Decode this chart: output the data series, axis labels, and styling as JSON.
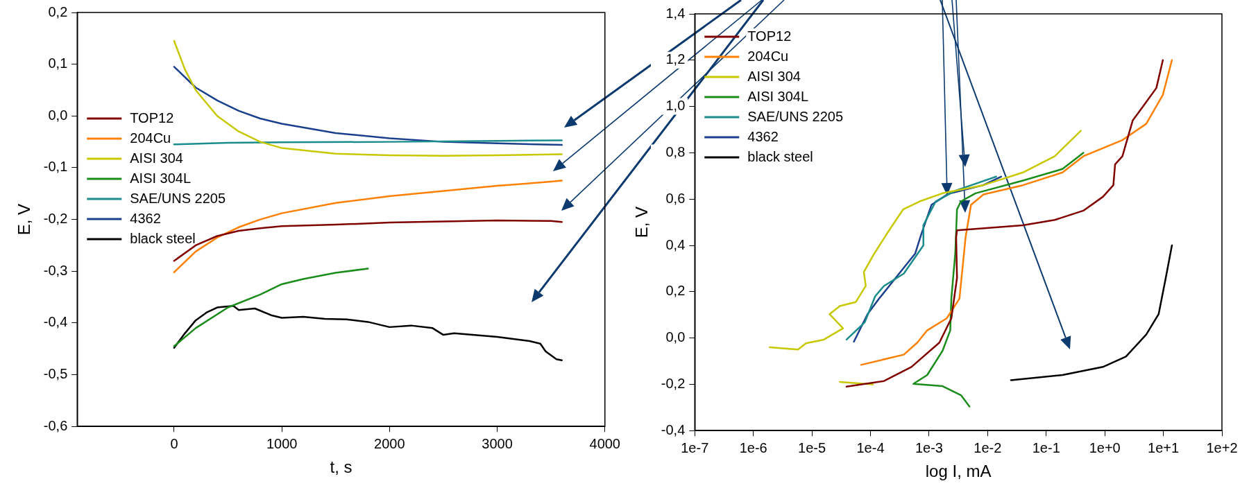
{
  "chart_data": [
    {
      "type": "line",
      "xlabel": "t, s",
      "ylabel": "E, V",
      "legend": "left",
      "grid": false,
      "xlim": [
        -900,
        4000
      ],
      "xticks": [
        0,
        1000,
        2000,
        3000,
        4000
      ],
      "ylim": [
        -0.6,
        0.2
      ],
      "yticks": [
        {
          "value": -0.6,
          "label": "-0,6"
        },
        {
          "value": -0.5,
          "label": "-0,5"
        },
        {
          "value": -0.4,
          "label": "-0,4"
        },
        {
          "value": -0.3,
          "label": "-0,3"
        },
        {
          "value": -0.2,
          "label": "-0,2"
        },
        {
          "value": -0.1,
          "label": "-0,1"
        },
        {
          "value": 0,
          "label": "0,0"
        },
        {
          "value": 0.1,
          "label": "0,1"
        },
        {
          "value": 0.2,
          "label": "0,2"
        }
      ],
      "series": [
        {
          "name": "TOP12",
          "color": "#800000",
          "x": [
            0,
            200,
            400,
            600,
            800,
            1000,
            1500,
            2000,
            2500,
            3000,
            3500,
            3600
          ],
          "values": [
            -0.28,
            -0.25,
            -0.232,
            -0.222,
            -0.217,
            -0.213,
            -0.21,
            -0.206,
            -0.204,
            -0.202,
            -0.203,
            -0.205
          ]
        },
        {
          "name": "204Cu",
          "color": "#ff8000",
          "x": [
            0,
            200,
            400,
            600,
            800,
            1000,
            1500,
            2000,
            2500,
            3000,
            3500,
            3600
          ],
          "values": [
            -0.302,
            -0.262,
            -0.235,
            -0.215,
            -0.2,
            -0.188,
            -0.168,
            -0.155,
            -0.145,
            -0.135,
            -0.127,
            -0.125
          ]
        },
        {
          "name": "AISI 304",
          "color": "#c8c800",
          "x": [
            0,
            100,
            200,
            400,
            600,
            800,
            1000,
            1500,
            2000,
            2500,
            3000,
            3600
          ],
          "values": [
            0.145,
            0.09,
            0.05,
            0.0,
            -0.03,
            -0.05,
            -0.062,
            -0.073,
            -0.076,
            -0.077,
            -0.076,
            -0.074
          ]
        },
        {
          "name": "AISI 304L",
          "color": "#1a8c1a",
          "x": [
            0,
            200,
            500,
            800,
            1000,
            1200,
            1500,
            1800
          ],
          "values": [
            -0.445,
            -0.41,
            -0.37,
            -0.345,
            -0.325,
            -0.315,
            -0.303,
            -0.295
          ]
        },
        {
          "name": "SAE/UNS 2205",
          "color": "#1a8c8c",
          "x": [
            0,
            500,
            1000,
            2000,
            3000,
            3600
          ],
          "values": [
            -0.055,
            -0.052,
            -0.051,
            -0.05,
            -0.048,
            -0.047
          ]
        },
        {
          "name": "4362",
          "color": "#1a3f8c",
          "x": [
            0,
            200,
            400,
            600,
            800,
            1000,
            1500,
            2000,
            2500,
            3000,
            3600
          ],
          "values": [
            0.095,
            0.055,
            0.03,
            0.01,
            -0.005,
            -0.015,
            -0.033,
            -0.043,
            -0.05,
            -0.053,
            -0.056
          ]
        },
        {
          "name": "black steel",
          "color": "#000000",
          "x": [
            0,
            100,
            200,
            300,
            400,
            550,
            600,
            750,
            900,
            1000,
            1200,
            1400,
            1600,
            1800,
            2000,
            2200,
            2400,
            2500,
            2600,
            3000,
            3300,
            3400,
            3450,
            3550,
            3600
          ],
          "values": [
            -0.448,
            -0.42,
            -0.395,
            -0.38,
            -0.37,
            -0.367,
            -0.375,
            -0.372,
            -0.385,
            -0.39,
            -0.388,
            -0.392,
            -0.393,
            -0.398,
            -0.408,
            -0.405,
            -0.41,
            -0.423,
            -0.42,
            -0.427,
            -0.435,
            -0.44,
            -0.455,
            -0.47,
            -0.472
          ]
        }
      ]
    },
    {
      "type": "line",
      "xlabel": "log I, mA",
      "ylabel": "E, V",
      "legend": "top left",
      "grid": false,
      "log": "x",
      "xlim": [
        1e-07,
        100
      ],
      "xticks": [
        {
          "value": 1e-07,
          "label": "1e-7"
        },
        {
          "value": 1e-06,
          "label": "1e-6"
        },
        {
          "value": 1e-05,
          "label": "1e-5"
        },
        {
          "value": 0.0001,
          "label": "1e-4"
        },
        {
          "value": 0.001,
          "label": "1e-3"
        },
        {
          "value": 0.01,
          "label": "1e-2"
        },
        {
          "value": 0.1,
          "label": "1e-1"
        },
        {
          "value": 1,
          "label": "1e+0"
        },
        {
          "value": 10,
          "label": "1e+1"
        },
        {
          "value": 100,
          "label": "1e+2"
        }
      ],
      "ylim": [
        -0.4,
        1.4
      ],
      "yticks": [
        {
          "value": -0.4,
          "label": "-0,4"
        },
        {
          "value": -0.2,
          "label": "-0,2"
        },
        {
          "value": 0,
          "label": "0,0"
        },
        {
          "value": 0.2,
          "label": "0,2"
        },
        {
          "value": 0.4,
          "label": "0,4"
        },
        {
          "value": 0.6,
          "label": "0,6"
        },
        {
          "value": 0.8,
          "label": "0,8"
        },
        {
          "value": 1.0,
          "label": "1,0"
        },
        {
          "value": 1.2,
          "label": "1,2"
        },
        {
          "value": 1.4,
          "label": "1,4"
        }
      ],
      "series": [
        {
          "name": "TOP12",
          "color": "#800000",
          "x": [
            3.9e-05,
            0.00017,
            0.0005,
            0.0015,
            0.0024,
            0.003,
            0.0029,
            0.003,
            0.04,
            0.14,
            0.43,
            0.93,
            1.4,
            1.5,
            2,
            3,
            4.5,
            7.6,
            9.8
          ],
          "values": [
            -0.21,
            -0.186,
            -0.125,
            -0.02,
            0.085,
            0.26,
            0.435,
            0.465,
            0.487,
            0.51,
            0.55,
            0.61,
            0.66,
            0.75,
            0.785,
            0.94,
            1.0,
            1.08,
            1.2
          ]
        },
        {
          "name": "204Cu",
          "color": "#ff8000",
          "x": [
            6.9e-05,
            0.00037,
            0.00063,
            0.00093,
            0.002,
            0.0033,
            0.0042,
            0.0052,
            0.0085,
            0.04,
            0.19,
            0.43,
            2,
            5.1,
            9.8,
            14
          ],
          "values": [
            -0.116,
            -0.072,
            -0.02,
            0.033,
            0.085,
            0.17,
            0.435,
            0.575,
            0.62,
            0.66,
            0.715,
            0.785,
            0.855,
            0.925,
            1.05,
            1.2
          ]
        },
        {
          "name": "AISI 304",
          "color": "#c8c800",
          "x": [
            3e-05,
            0.00011,
            null,
            1.9e-06,
            5.8e-06,
            7.9e-06,
            1.6e-05,
            3.4e-05,
            2e-05,
            3e-05,
            5.6e-05,
            8.3e-05,
            7.7e-05,
            0.00011,
            0.00019,
            0.00036,
            0.00069,
            0.0017,
            0.0084,
            0.04,
            0.14,
            0.39
          ],
          "values": [
            -0.19,
            -0.2,
            null,
            -0.04,
            -0.05,
            -0.023,
            -0.007,
            0.042,
            0.103,
            0.138,
            0.155,
            0.225,
            0.285,
            0.355,
            0.45,
            0.555,
            0.59,
            0.625,
            0.66,
            0.715,
            0.785,
            0.895
          ]
        },
        {
          "name": "AISI 304L",
          "color": "#1a8c1a",
          "x": [
            0.0049,
            0.0035,
            0.0017,
            0.00054,
            0.00093,
            0.0017,
            0.0023,
            0.0024,
            0.0028,
            0.003,
            0.0035,
            0.0062,
            0.04,
            0.19,
            0.43
          ],
          "values": [
            -0.296,
            -0.247,
            -0.208,
            -0.198,
            -0.16,
            -0.055,
            0.033,
            0.17,
            0.365,
            0.555,
            0.59,
            0.625,
            0.68,
            0.73,
            0.8
          ]
        },
        {
          "name": "SAE/UNS 2205",
          "color": "#1a8c8c",
          "x": [
            3.9e-05,
            8e-05,
            0.00012,
            0.00017,
            0.00037,
            0.0008,
            0.0008,
            0.0013,
            0.0028,
            0.014
          ],
          "values": [
            -0.007,
            0.068,
            0.18,
            0.225,
            0.278,
            0.4,
            0.487,
            0.59,
            0.636,
            0.697
          ]
        },
        {
          "name": "4362",
          "color": "#1a3f8c",
          "x": [
            5.2e-05,
            8.9e-05,
            0.00014,
            0.00027,
            0.00058,
            0.00074,
            0.0011,
            0.0021,
            0.0084,
            0.017
          ],
          "values": [
            -0.016,
            0.103,
            0.17,
            0.26,
            0.365,
            0.45,
            0.575,
            0.622,
            0.66,
            0.697
          ]
        },
        {
          "name": "black steel",
          "color": "#000000",
          "x": [
            0.025,
            0.19,
            0.93,
            2.3,
            5.1,
            8.3,
            11,
            14
          ],
          "values": [
            -0.182,
            -0.16,
            -0.125,
            -0.08,
            0.015,
            0.103,
            0.26,
            0.4
          ]
        }
      ]
    }
  ]
}
